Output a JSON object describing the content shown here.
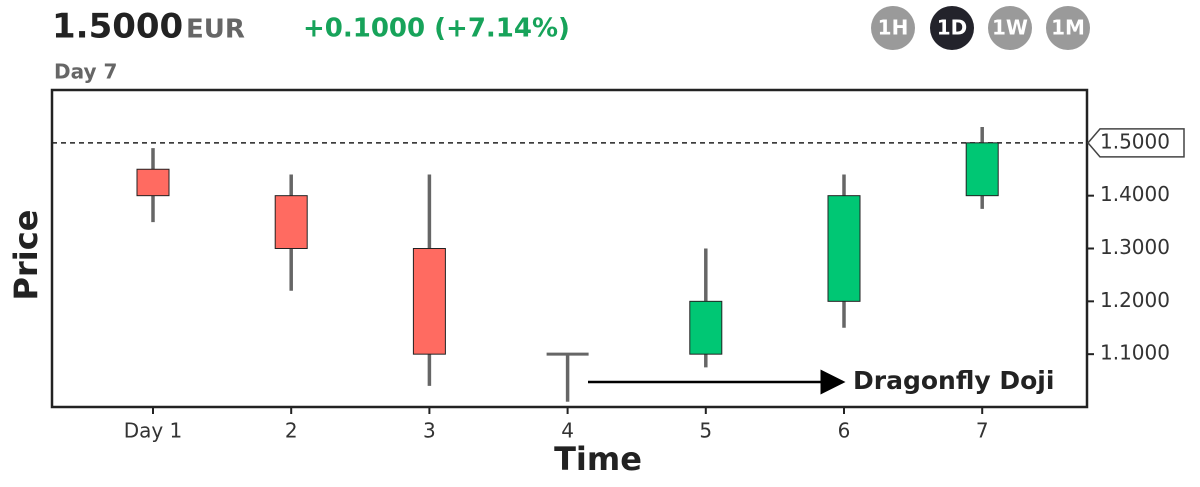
{
  "header": {
    "price": "1.5000",
    "currency": "EUR",
    "change": "+0.1000 (+7.14%)",
    "selected": "Day 7",
    "intervals": [
      "1H",
      "1D",
      "1W",
      "1M"
    ],
    "active_interval": "1D"
  },
  "chart_data": {
    "type": "candlestick",
    "x_label": "Time",
    "y_label": "Price",
    "categories": [
      "Day 1",
      "2",
      "3",
      "4",
      "5",
      "6",
      "7"
    ],
    "open": [
      1.45,
      1.4,
      1.3,
      1.1,
      1.1,
      1.2,
      1.4
    ],
    "high": [
      1.49,
      1.44,
      1.44,
      1.1,
      1.3,
      1.44,
      1.53
    ],
    "low": [
      1.35,
      1.22,
      1.04,
      1.01,
      1.075,
      1.15,
      1.375
    ],
    "close": [
      1.4,
      1.3,
      1.1,
      1.1,
      1.2,
      1.4,
      1.5
    ],
    "up_color": "#00c774",
    "down_color": "#ff6b61",
    "ylim": [
      1.0,
      1.6
    ],
    "yticks": [
      {
        "value": 1.1,
        "label": "1.1000"
      },
      {
        "value": 1.2,
        "label": "1.2000"
      },
      {
        "value": 1.3,
        "label": "1.3000"
      },
      {
        "value": 1.4,
        "label": "1.4000"
      }
    ],
    "reference_line": {
      "value": 1.5,
      "label": "1.5000"
    },
    "annotation": "Dragonfly Doji"
  }
}
